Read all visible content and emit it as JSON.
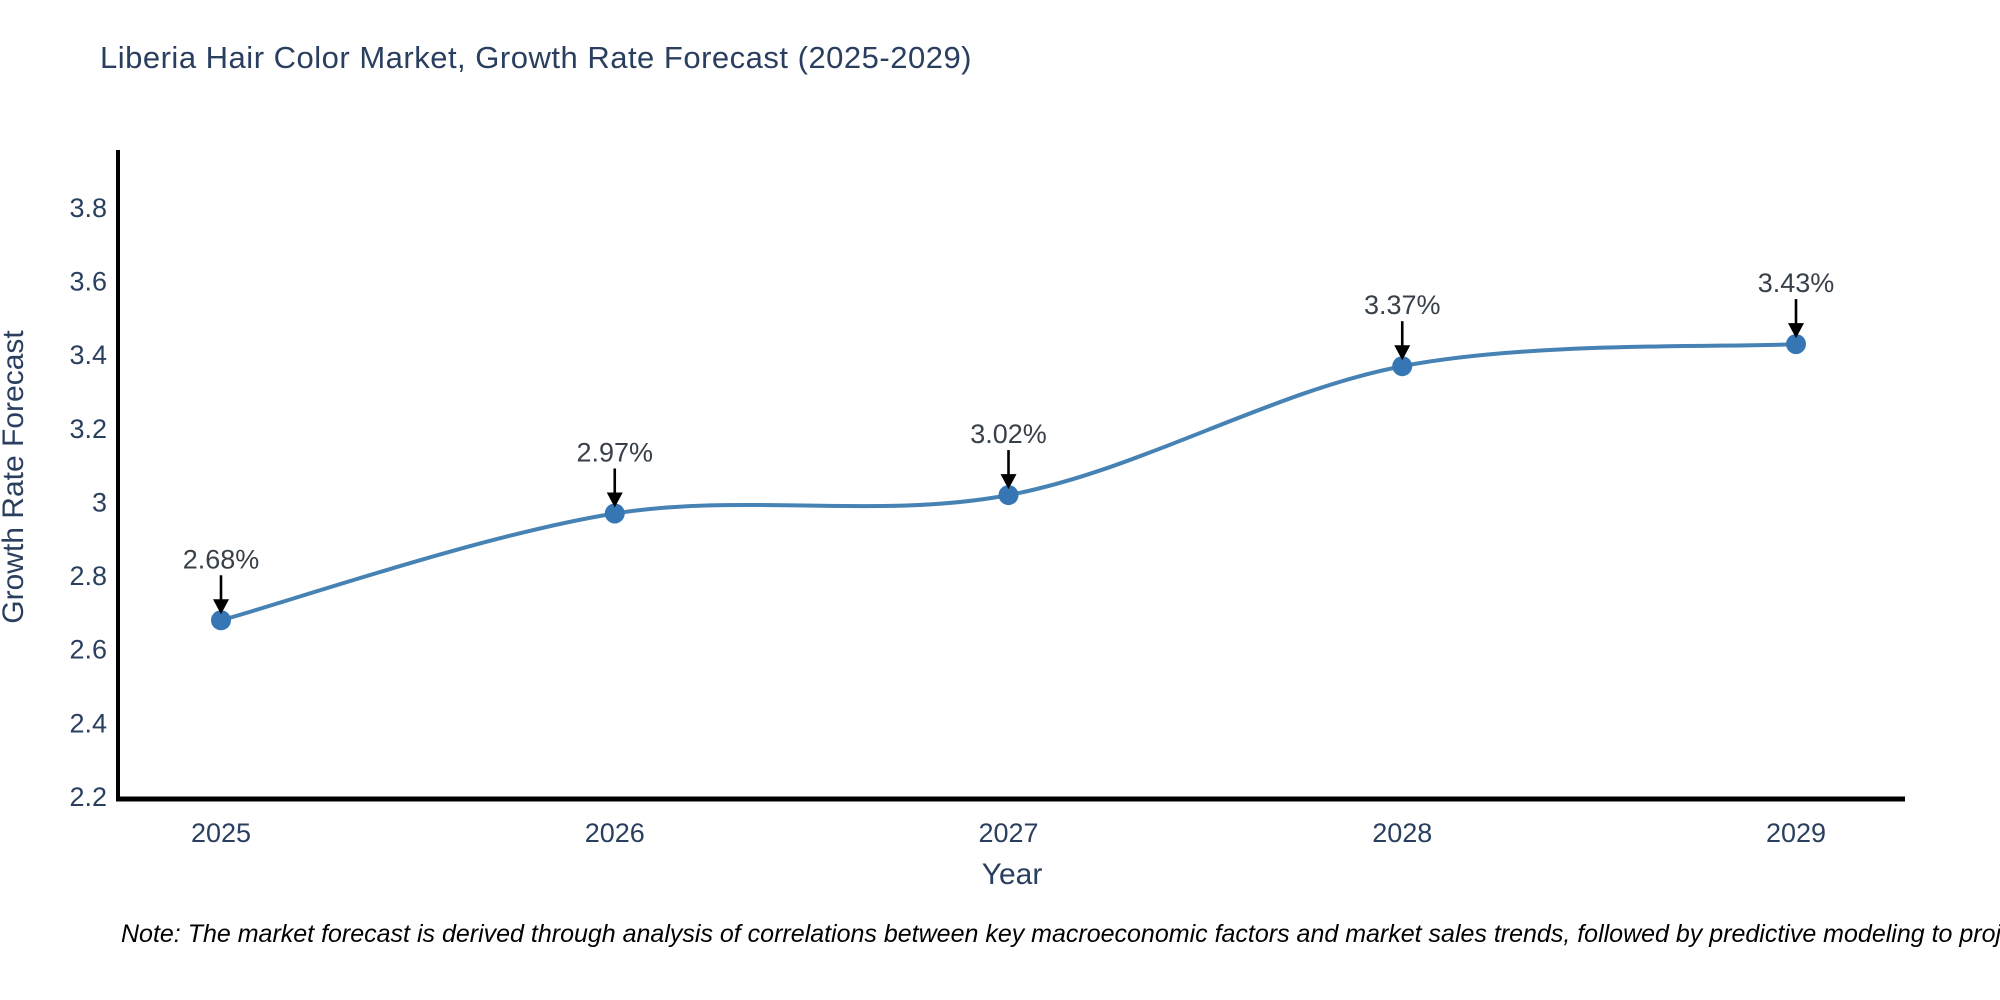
{
  "chart_data": {
    "type": "line",
    "title": "Liberia Hair Color Market, Growth Rate Forecast (2025-2029)",
    "categories": [
      "2025",
      "2026",
      "2027",
      "2028",
      "2029"
    ],
    "values": [
      2.68,
      2.97,
      3.02,
      3.37,
      3.43
    ],
    "point_labels": [
      "2.68%",
      "2.97%",
      "3.02%",
      "3.37%",
      "3.43%"
    ],
    "xlabel": "Year",
    "ylabel": "Growth Rate Forecast",
    "ylim": [
      2.2,
      3.93
    ],
    "yticks": [
      2.2,
      2.4,
      2.6,
      2.8,
      3,
      3.2,
      3.4,
      3.6,
      3.8
    ],
    "ytick_labels": [
      "2.2",
      "2.4",
      "2.6",
      "2.8",
      "3",
      "3.2",
      "3.4",
      "3.6",
      "3.8"
    ],
    "grid": false,
    "legend": false,
    "line_shape": "spline",
    "colors": {
      "line": "#4682b4",
      "marker": "#3676b4",
      "axis": "#000000",
      "tick_text": "#2a3f5f",
      "annotation_text": "#38404a",
      "annotation_arrow": "#000000"
    },
    "note": "Note: The market forecast is derived through analysis of correlations between key macroeconomic factors and market sales trends, followed by predictive modeling to project future sales"
  }
}
